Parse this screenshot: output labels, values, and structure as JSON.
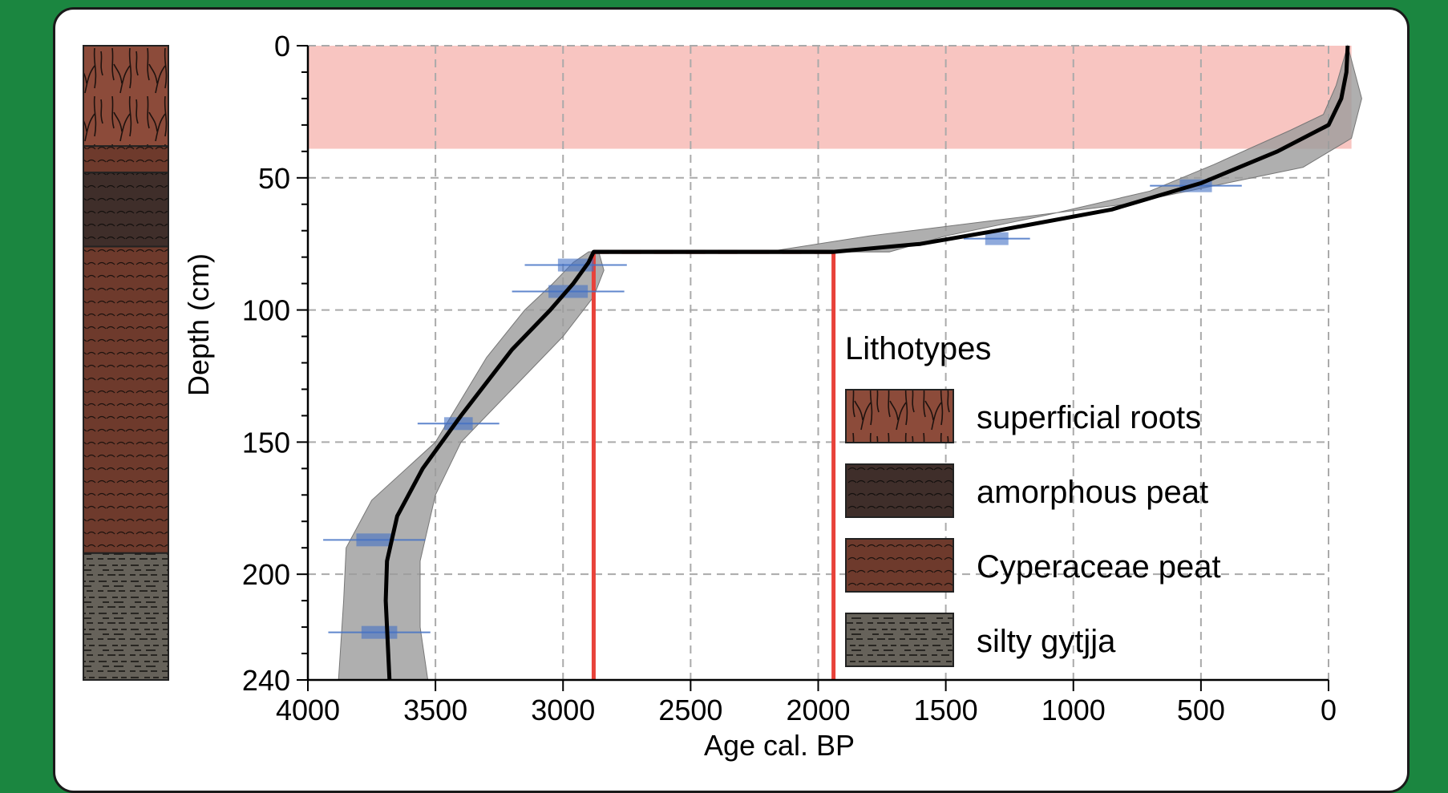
{
  "chart_data": {
    "type": "line",
    "xlabel": "Age cal. BP",
    "ylabel": "Depth (cm)",
    "xlim": [
      4000,
      0
    ],
    "ylim": [
      240,
      0
    ],
    "x_ticks": [
      4000,
      3500,
      3000,
      2500,
      2000,
      1500,
      1000,
      500,
      0
    ],
    "y_ticks": [
      0,
      50,
      100,
      150,
      200,
      240
    ],
    "grid": "dashed",
    "age_depth_model": {
      "points": [
        [
          -75,
          0
        ],
        [
          -70,
          10
        ],
        [
          -50,
          20
        ],
        [
          0,
          30
        ],
        [
          200,
          40
        ],
        [
          500,
          52
        ],
        [
          850,
          62
        ],
        [
          1300,
          70
        ],
        [
          1600,
          75
        ],
        [
          1940,
          78
        ],
        [
          2880,
          78
        ],
        [
          2900,
          82
        ],
        [
          2960,
          90
        ],
        [
          3050,
          100
        ],
        [
          3200,
          115
        ],
        [
          3400,
          140
        ],
        [
          3550,
          160
        ],
        [
          3650,
          178
        ],
        [
          3690,
          195
        ],
        [
          3695,
          210
        ],
        [
          3680,
          240
        ]
      ],
      "uncertainty_upper": [
        [
          -75,
          0
        ],
        [
          -130,
          20
        ],
        [
          -90,
          35
        ],
        [
          100,
          46
        ],
        [
          400,
          52
        ],
        [
          800,
          60
        ],
        [
          1300,
          66
        ],
        [
          1800,
          72
        ],
        [
          2200,
          78
        ],
        [
          2860,
          78
        ],
        [
          2840,
          85
        ],
        [
          2880,
          95
        ],
        [
          3000,
          110
        ],
        [
          3200,
          130
        ],
        [
          3400,
          150
        ],
        [
          3500,
          170
        ],
        [
          3560,
          195
        ],
        [
          3560,
          220
        ],
        [
          3530,
          240
        ]
      ],
      "uncertainty_lower": [
        [
          -75,
          0
        ],
        [
          -30,
          15
        ],
        [
          20,
          26
        ],
        [
          150,
          32
        ],
        [
          450,
          45
        ],
        [
          700,
          55
        ],
        [
          1100,
          64
        ],
        [
          1500,
          72
        ],
        [
          1720,
          78
        ],
        [
          2900,
          78
        ],
        [
          2960,
          82
        ],
        [
          3040,
          90
        ],
        [
          3150,
          100
        ],
        [
          3300,
          118
        ],
        [
          3500,
          150
        ],
        [
          3750,
          172
        ],
        [
          3850,
          190
        ],
        [
          3860,
          210
        ],
        [
          3880,
          240
        ]
      ]
    },
    "dated_samples": [
      {
        "age": 520,
        "depth": 53,
        "err": 180
      },
      {
        "age": 1300,
        "depth": 73,
        "err": 130
      },
      {
        "age": 2950,
        "depth": 83,
        "err": 200
      },
      {
        "age": 2980,
        "depth": 93,
        "err": 220
      },
      {
        "age": 3410,
        "depth": 143,
        "err": 160
      },
      {
        "age": 3740,
        "depth": 187,
        "err": 200
      },
      {
        "age": 3720,
        "depth": 222,
        "err": 200
      }
    ],
    "hiatus": {
      "depth": 78,
      "age_top": 1940,
      "age_bottom": 2880
    },
    "excluded_zone": {
      "depth_top": 0,
      "depth_bottom": 39,
      "age_from": -90,
      "age_to": 4000
    },
    "color_model": "#000000",
    "color_uncertainty": "#9b9b9b",
    "color_samples": "#4472c4",
    "color_hiatus": "#e8423a",
    "color_zone": "#f4a6a0"
  },
  "stratigraphy": {
    "layers": [
      {
        "lithotype": "superficial_roots",
        "depth_top": 0,
        "depth_bottom": 38
      },
      {
        "lithotype": "cyperaceae",
        "depth_top": 38,
        "depth_bottom": 48
      },
      {
        "lithotype": "amorphous",
        "depth_top": 48,
        "depth_bottom": 76
      },
      {
        "lithotype": "cyperaceae",
        "depth_top": 76,
        "depth_bottom": 192
      },
      {
        "lithotype": "silty_gytjja",
        "depth_top": 192,
        "depth_bottom": 240
      }
    ]
  },
  "legend": {
    "title": "Lithotypes",
    "items": [
      {
        "key": "superficial_roots",
        "label": "superficial roots",
        "color": "#8c4b3a"
      },
      {
        "key": "amorphous",
        "label": "amorphous peat",
        "color": "#3f2e2a"
      },
      {
        "key": "cyperaceae",
        "label": "Cyperaceae peat",
        "color": "#6e3a2c"
      },
      {
        "key": "silty_gytjja",
        "label": "silty gytjja",
        "color": "#66625a"
      }
    ]
  }
}
